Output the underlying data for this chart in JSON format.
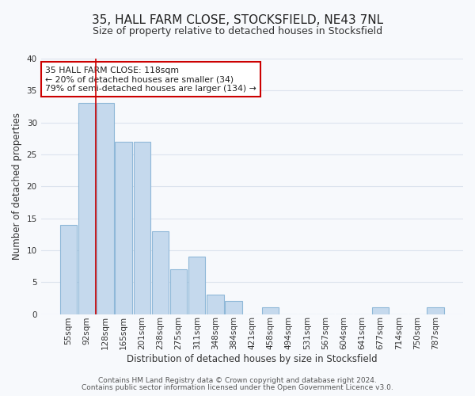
{
  "title": "35, HALL FARM CLOSE, STOCKSFIELD, NE43 7NL",
  "subtitle": "Size of property relative to detached houses in Stocksfield",
  "xlabel": "Distribution of detached houses by size in Stocksfield",
  "ylabel": "Number of detached properties",
  "bin_labels": [
    "55sqm",
    "92sqm",
    "128sqm",
    "165sqm",
    "201sqm",
    "238sqm",
    "275sqm",
    "311sqm",
    "348sqm",
    "384sqm",
    "421sqm",
    "458sqm",
    "494sqm",
    "531sqm",
    "567sqm",
    "604sqm",
    "641sqm",
    "677sqm",
    "714sqm",
    "750sqm",
    "787sqm"
  ],
  "bar_values": [
    14,
    33,
    33,
    27,
    27,
    13,
    7,
    9,
    3,
    2,
    0,
    1,
    0,
    0,
    0,
    0,
    0,
    1,
    0,
    0,
    1
  ],
  "bar_color": "#c5d9ed",
  "bar_edge_color": "#8fb8d8",
  "red_line_x": 1.5,
  "ylim": [
    0,
    40
  ],
  "yticks": [
    0,
    5,
    10,
    15,
    20,
    25,
    30,
    35,
    40
  ],
  "annotation_line1": "35 HALL FARM CLOSE: 118sqm",
  "annotation_line2": "← 20% of detached houses are smaller (34)",
  "annotation_line3": "79% of semi-detached houses are larger (134) →",
  "annotation_box_color": "#ffffff",
  "annotation_box_edge": "#cc0000",
  "footer_line1": "Contains HM Land Registry data © Crown copyright and database right 2024.",
  "footer_line2": "Contains public sector information licensed under the Open Government Licence v3.0.",
  "bg_color": "#f7f9fc",
  "grid_color": "#dde4ee",
  "title_fontsize": 11,
  "subtitle_fontsize": 9,
  "axis_fontsize": 8.5,
  "tick_fontsize": 7.5,
  "footer_fontsize": 6.5
}
